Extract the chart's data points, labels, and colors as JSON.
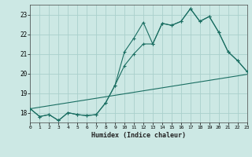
{
  "xlabel": "Humidex (Indice chaleur)",
  "bg_color": "#cce8e4",
  "grid_color": "#aad0cc",
  "line_color": "#1a6e62",
  "xlim": [
    0,
    23
  ],
  "ylim": [
    17.5,
    23.5
  ],
  "yticks": [
    18,
    19,
    20,
    21,
    22,
    23
  ],
  "xticks": [
    0,
    1,
    2,
    3,
    4,
    5,
    6,
    7,
    8,
    9,
    10,
    11,
    12,
    13,
    14,
    15,
    16,
    17,
    18,
    19,
    20,
    21,
    22,
    23
  ],
  "line1_x": [
    0,
    1,
    2,
    3,
    4,
    5,
    6,
    7,
    8,
    9,
    10,
    11,
    12,
    13,
    14,
    15,
    16,
    17,
    18,
    19,
    20,
    21,
    22,
    23
  ],
  "line1_y": [
    18.2,
    17.8,
    17.9,
    17.6,
    18.0,
    17.9,
    17.85,
    17.9,
    18.5,
    19.4,
    21.1,
    21.8,
    22.6,
    21.5,
    22.55,
    22.45,
    22.65,
    23.3,
    22.65,
    22.9,
    22.1,
    21.1,
    20.65,
    20.1
  ],
  "line2_x": [
    0,
    1,
    2,
    3,
    4,
    5,
    6,
    7,
    8,
    9,
    10,
    11,
    12,
    13,
    14,
    15,
    16,
    17,
    18,
    19,
    20,
    21,
    22,
    23
  ],
  "line2_y": [
    18.2,
    17.8,
    17.9,
    17.6,
    18.0,
    17.9,
    17.85,
    17.9,
    18.5,
    19.4,
    20.4,
    21.0,
    21.5,
    21.5,
    22.55,
    22.45,
    22.65,
    23.3,
    22.65,
    22.9,
    22.1,
    21.1,
    20.65,
    20.1
  ],
  "line3_x": [
    0,
    23
  ],
  "line3_y": [
    18.2,
    19.95
  ]
}
